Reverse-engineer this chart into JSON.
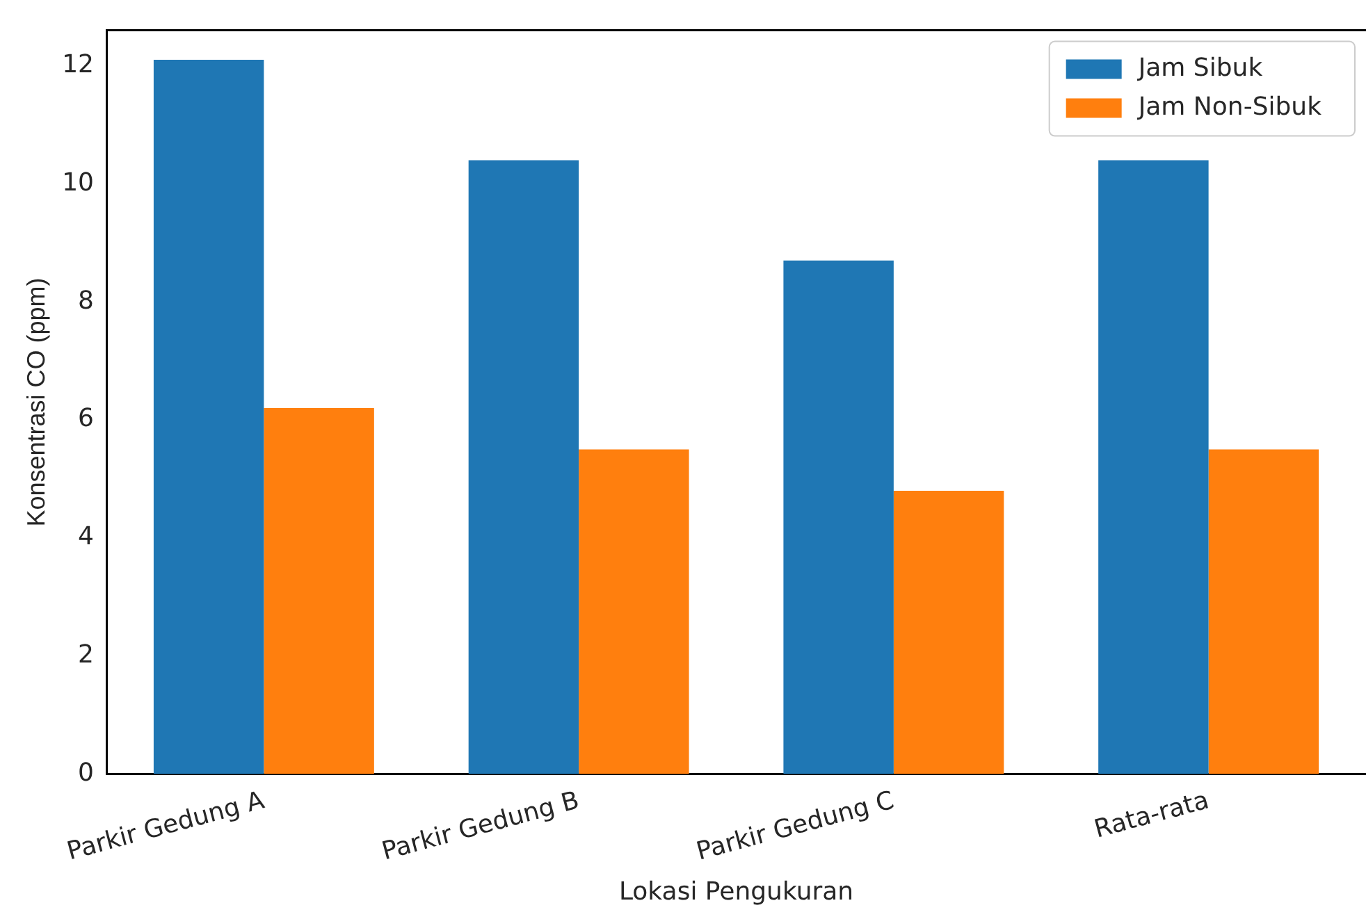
{
  "chart_data": {
    "type": "bar",
    "xlabel": "Lokasi Pengukuran",
    "ylabel": "Konsentrasi CO (ppm)",
    "categories": [
      "Parkir Gedung A",
      "Parkir Gedung B",
      "Parkir Gedung C",
      "Rata-rata"
    ],
    "series": [
      {
        "name": "Jam Sibuk",
        "color": "#1f77b4",
        "values": [
          12.1,
          10.4,
          8.7,
          10.4
        ]
      },
      {
        "name": "Jam Non-Sibuk",
        "color": "#ff7f0e",
        "values": [
          6.2,
          5.5,
          4.8,
          5.5
        ]
      }
    ],
    "ylim": [
      0,
      12.6
    ],
    "yticks": [
      0,
      2,
      4,
      6,
      8,
      10,
      12
    ],
    "grid": false,
    "legend": "top right"
  }
}
